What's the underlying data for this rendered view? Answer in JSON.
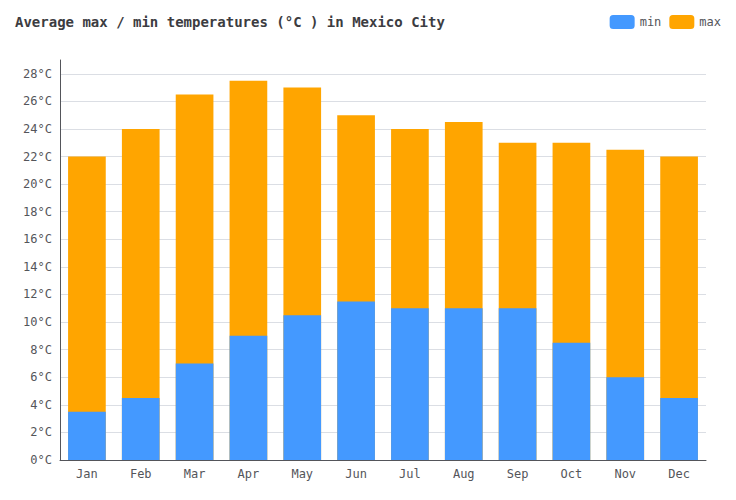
{
  "chart_data": {
    "type": "bar",
    "title": "Average max / min temperatures (°C ) in Mexico City",
    "categories": [
      "Jan",
      "Feb",
      "Mar",
      "Apr",
      "May",
      "Jun",
      "Jul",
      "Aug",
      "Sep",
      "Oct",
      "Nov",
      "Dec"
    ],
    "series": [
      {
        "name": "max",
        "color": "#FFA500",
        "values": [
          22,
          24,
          26.5,
          27.5,
          27,
          25,
          24,
          24.5,
          23,
          23,
          22.5,
          22
        ]
      },
      {
        "name": "min",
        "color": "#4499FF",
        "values": [
          3.5,
          4.5,
          7,
          9,
          10.5,
          11.5,
          11,
          11,
          11,
          8.5,
          6,
          4.5
        ]
      }
    ],
    "ylim": [
      0,
      29
    ],
    "yticks": [
      {
        "value": 0,
        "label": "0°C"
      },
      {
        "value": 2,
        "label": "2°C"
      },
      {
        "value": 4,
        "label": "4°C"
      },
      {
        "value": 6,
        "label": "6°C"
      },
      {
        "value": 8,
        "label": "8°C"
      },
      {
        "value": 10,
        "label": "10°C"
      },
      {
        "value": 12,
        "label": "12°C"
      },
      {
        "value": 14,
        "label": "14°C"
      },
      {
        "value": 16,
        "label": "16°C"
      },
      {
        "value": 18,
        "label": "18°C"
      },
      {
        "value": 20,
        "label": "20°C"
      },
      {
        "value": 22,
        "label": "22°C"
      },
      {
        "value": 24,
        "label": "24°C"
      },
      {
        "value": 26,
        "label": "26°C"
      },
      {
        "value": 28,
        "label": "28°C"
      }
    ],
    "grid": true,
    "legend": "upper right"
  }
}
